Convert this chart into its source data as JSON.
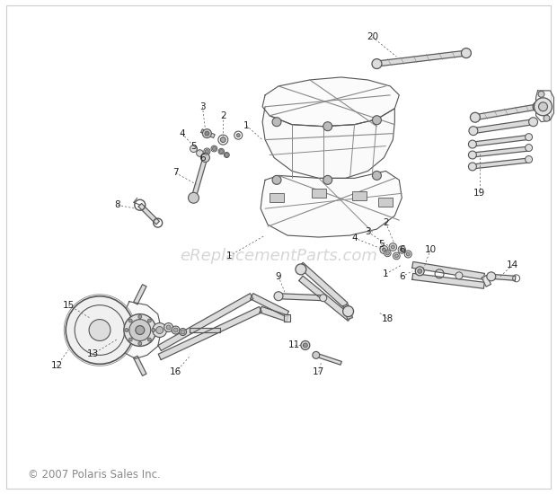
{
  "background_color": "#ffffff",
  "watermark_text": "eReplacementParts.com",
  "watermark_color": "#bbbbbb",
  "watermark_fontsize": 13,
  "copyright_text": "© 2007 Polaris Sales Inc.",
  "copyright_fontsize": 8.5,
  "copyright_color": "#888888",
  "fig_width": 6.2,
  "fig_height": 5.5,
  "dpi": 100,
  "line_color": "#888888",
  "dark_line": "#555555",
  "part_color": "#999999",
  "label_fontsize": 7.5,
  "label_color": "#222222",
  "leader_color": "#555555",
  "border_color": "#cccccc"
}
